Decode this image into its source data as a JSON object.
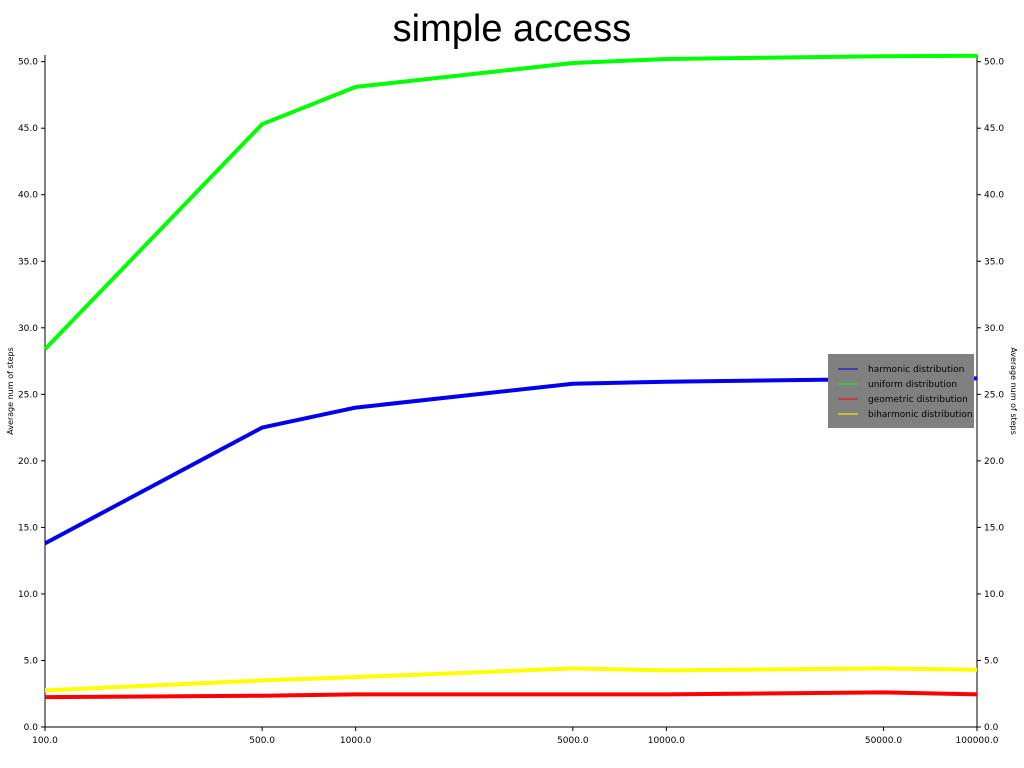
{
  "chart_data": {
    "type": "line",
    "title": "simple access",
    "xlabel": "",
    "ylabel": "Average num of steps",
    "ylabel_right": "Average num of steps",
    "x_scale": "log",
    "x": [
      100,
      500,
      1000,
      5000,
      10000,
      50000,
      100000
    ],
    "x_tick_labels": [
      "100.0",
      "500.0",
      "1000.0",
      "5000.0",
      "10000.0",
      "50000.0",
      "100000.0"
    ],
    "ylim": [
      0,
      50.5
    ],
    "y_ticks": [
      0,
      5,
      10,
      15,
      20,
      25,
      30,
      35,
      40,
      45,
      50
    ],
    "y_tick_labels": [
      "0.0",
      "5.0",
      "10.0",
      "15.0",
      "20.0",
      "25.0",
      "30.0",
      "35.0",
      "40.0",
      "45.0",
      "50.0"
    ],
    "grid": false,
    "legend_position": "center-right",
    "legend_background": "#808080",
    "series": [
      {
        "name": "harmonic distribution",
        "color": "#0000ee",
        "values": [
          13.8,
          22.5,
          24.0,
          25.8,
          25.95,
          26.15,
          26.2
        ]
      },
      {
        "name": "uniform distribution",
        "color": "#00ff00",
        "values": [
          28.4,
          45.3,
          48.1,
          49.9,
          50.2,
          50.4,
          50.45
        ]
      },
      {
        "name": "geometric distribution",
        "color": "#ff0000",
        "values": [
          2.25,
          2.35,
          2.45,
          2.45,
          2.45,
          2.6,
          2.45
        ]
      },
      {
        "name": "biharmonic distribution",
        "color": "#ffff00",
        "values": [
          2.75,
          3.5,
          3.75,
          4.4,
          4.25,
          4.4,
          4.3
        ]
      }
    ]
  }
}
